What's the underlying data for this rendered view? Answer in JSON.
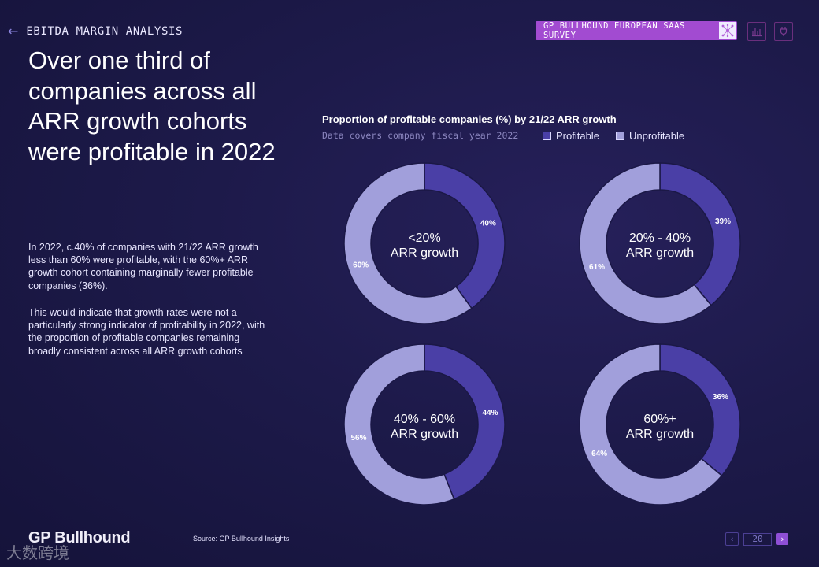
{
  "header": {
    "back_icon": "arrow-left-icon",
    "section_title": "EBITDA MARGIN ANALYSIS",
    "survey_label": "GP BULLHOUND EUROPEAN SAAS SURVEY",
    "tag_color": "#a24bd1"
  },
  "headline": "Over one third of companies across all ARR growth cohorts were profitable in 2022",
  "body": {
    "paragraph_1": "In 2022, c.40% of companies with 21/22 ARR growth less than 60% were profitable, with the 60%+ ARR growth cohort containing marginally fewer profitable companies (36%).",
    "paragraph_2": "This would indicate that growth rates were not a particularly strong indicator of profitability in 2022, with the proportion of profitable companies remaining broadly consistent across all ARR growth cohorts"
  },
  "chart_data": {
    "type": "pie",
    "variant": "donut",
    "title": "Proportion of profitable companies (%) by 21/22 ARR growth",
    "subtitle": "Data covers company fiscal year 2022",
    "legend": [
      "Profitable",
      "Unprofitable"
    ],
    "colors": {
      "profitable": "#4a3fa6",
      "unprofitable": "#a19fdb",
      "stroke": "#1b1846"
    },
    "charts": [
      {
        "label_line1": "<20%",
        "label_line2": "ARR growth",
        "profitable": 40,
        "unprofitable": 60,
        "profitable_label": "40%",
        "unprofitable_label": "60%"
      },
      {
        "label_line1": "20% - 40%",
        "label_line2": "ARR growth",
        "profitable": 39,
        "unprofitable": 61,
        "profitable_label": "39%",
        "unprofitable_label": "61%"
      },
      {
        "label_line1": "40% - 60%",
        "label_line2": "ARR growth",
        "profitable": 44,
        "unprofitable": 56,
        "profitable_label": "44%",
        "unprofitable_label": "56%"
      },
      {
        "label_line1": "60%+",
        "label_line2": "ARR growth",
        "profitable": 36,
        "unprofitable": 64,
        "profitable_label": "36%",
        "unprofitable_label": "64%"
      }
    ]
  },
  "footer": {
    "logo": "GP Bullhound",
    "source": "Source: GP Bullhound Insights",
    "watermark": "大数跨境",
    "page_number": "20"
  }
}
